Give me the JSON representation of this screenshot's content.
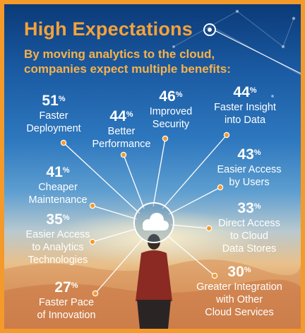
{
  "title": "High Expectations",
  "subtitle": "By moving analytics to the cloud, companies expect multiple benefits:",
  "colors": {
    "accent": "#f39a2a",
    "text": "#ffffff"
  },
  "hub_icon": "cloud-icon",
  "benefits": [
    {
      "value": "51",
      "unit": "%",
      "label": "Faster\nDeployment"
    },
    {
      "value": "44",
      "unit": "%",
      "label": "Better\nPerformance"
    },
    {
      "value": "46",
      "unit": "%",
      "label": "Improved\nSecurity"
    },
    {
      "value": "44",
      "unit": "%",
      "label": "Faster Insight\ninto Data"
    },
    {
      "value": "43",
      "unit": "%",
      "label": "Easier Access\nby Users"
    },
    {
      "value": "33",
      "unit": "%",
      "label": "Direct Access\nto Cloud\nData Stores"
    },
    {
      "value": "30",
      "unit": "%",
      "label": "Greater Integration\nwith Other\nCloud Services"
    },
    {
      "value": "27",
      "unit": "%",
      "label": "Faster Pace\nof Innovation"
    },
    {
      "value": "35",
      "unit": "%",
      "label": "Easier Access\nto Analytics\nTechnologies"
    },
    {
      "value": "41",
      "unit": "%",
      "label": "Cheaper\nMaintenance"
    }
  ]
}
